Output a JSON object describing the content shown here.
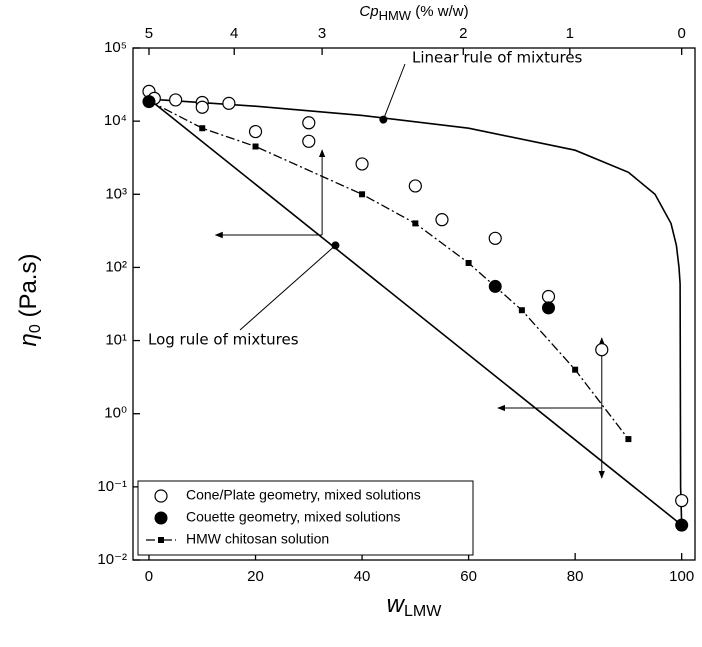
{
  "chart_data": {
    "type": "scatter",
    "xlabel": [
      "w",
      "LMW"
    ],
    "ylabel": [
      "η",
      "0",
      " (Pa.s)"
    ],
    "x2label": [
      "Cp",
      "HMW",
      " (% w/w)"
    ],
    "xlim": [
      -3,
      102.5
    ],
    "xticks": [
      0,
      20,
      40,
      60,
      80,
      100
    ],
    "ylim": [
      0.01,
      100000
    ],
    "ylog": true,
    "yticks": [
      {
        "value": 100000,
        "label": "10⁵"
      },
      {
        "value": 10000,
        "label": "10⁴"
      },
      {
        "value": 1000,
        "label": "10³"
      },
      {
        "value": 100,
        "label": "10²"
      },
      {
        "value": 10,
        "label": "10¹"
      },
      {
        "value": 1,
        "label": "10⁰"
      },
      {
        "value": 0.1,
        "label": "10⁻¹"
      },
      {
        "value": 0.01,
        "label": "10⁻²"
      }
    ],
    "x2ticks": [
      5,
      4,
      3,
      2,
      1,
      0
    ],
    "x2tick_positions": [
      0,
      16,
      32.5,
      59,
      79,
      100
    ],
    "legend": "lower left",
    "series": [
      {
        "name": "Cone/Plate geometry, mixed solutions",
        "color": "#000000",
        "marker": "open-circle",
        "mode": "markers",
        "x": [
          0,
          1,
          5,
          10,
          10,
          15,
          20,
          30,
          30,
          40,
          50,
          55,
          65,
          75,
          85,
          100
        ],
        "values": [
          25500,
          20500,
          19500,
          18000,
          15500,
          17500,
          7200,
          9500,
          5300,
          2600,
          1300,
          450,
          250,
          40,
          7.5,
          0.065
        ]
      },
      {
        "name": "Couette geometry, mixed solutions",
        "color": "#000000",
        "marker": "filled-circle",
        "mode": "markers",
        "x": [
          0,
          65,
          75,
          100
        ],
        "values": [
          18500,
          55,
          28,
          0.03
        ]
      },
      {
        "name": "HMW chitosan solution",
        "color": "#000000",
        "marker": "square",
        "mode": "lines+markers",
        "dash": "dash-dot",
        "x": [
          0,
          10,
          20,
          40,
          50,
          60,
          70,
          80,
          90
        ],
        "values": [
          19000,
          8000,
          4500,
          1000,
          400,
          115,
          26,
          4,
          0.45
        ]
      }
    ],
    "curves": [
      {
        "label": "Linear rule of mixtures",
        "color": "#000000",
        "x": [
          0,
          20,
          40,
          60,
          80,
          90,
          95,
          98,
          99,
          99.5,
          99.7,
          99.8,
          100
        ],
        "values": [
          20000,
          16000,
          12000,
          8000,
          4000,
          2000,
          1000,
          400,
          200,
          100,
          60,
          0.1,
          0.03
        ],
        "point_x": 44,
        "point_value": 10500
      },
      {
        "label": "Log rule of mixtures",
        "color": "#000000",
        "x": [
          0,
          100
        ],
        "values": [
          20000,
          0.03
        ],
        "point_x": 35,
        "point_value": 200
      }
    ]
  }
}
